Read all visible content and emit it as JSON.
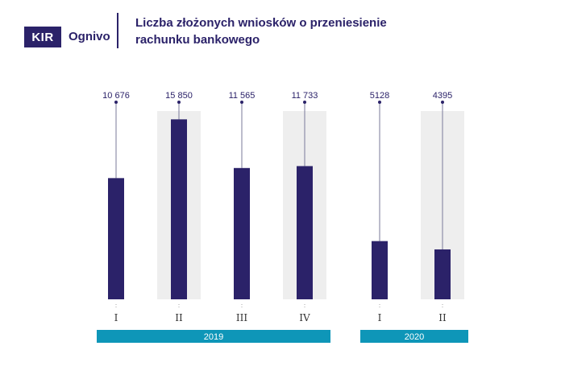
{
  "header": {
    "logo_box_text": "KIR",
    "logo_text": "Ognivo",
    "title_line1": "Liczba złożonych wniosków o przeniesienie",
    "title_line2": "rachunku bankowego"
  },
  "colors": {
    "bar": "#2b2269",
    "band": "#0e96b8",
    "shade": "#eeeeee",
    "text": "#2b2269",
    "stem": "#7a7a9a"
  },
  "chart_data": {
    "type": "bar",
    "categories": [
      "I",
      "II",
      "III",
      "IV",
      "I",
      "II"
    ],
    "values": [
      10676,
      15850,
      11565,
      11733,
      5128,
      4395
    ],
    "value_labels": [
      "10 676",
      "15 850",
      "11 565",
      "11 733",
      "5128",
      "4395"
    ],
    "groups": [
      {
        "label": "2019",
        "categories": [
          0,
          1,
          2,
          3
        ]
      },
      {
        "label": "2020",
        "categories": [
          4,
          5
        ]
      }
    ],
    "ylim": [
      0,
      18000
    ],
    "legend": "none",
    "grid": false
  }
}
